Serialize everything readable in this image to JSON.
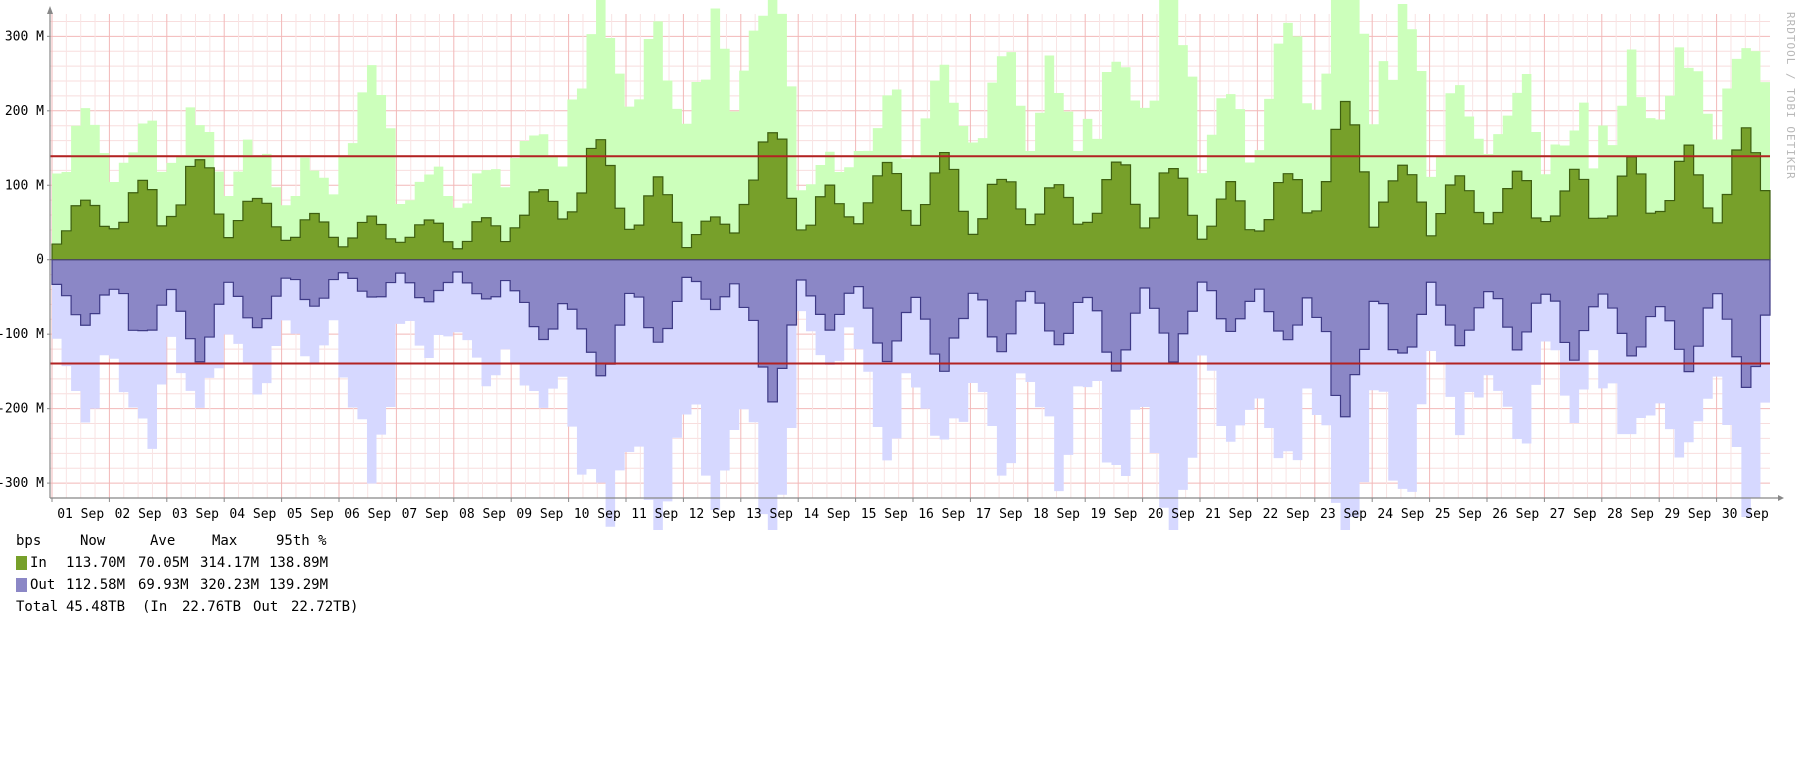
{
  "chart_data": {
    "type": "area",
    "ylabel": "",
    "xlabel": "",
    "ylim": [
      -320000000,
      330000000
    ],
    "yticks": [
      {
        "value": 300000000,
        "label": "300 M"
      },
      {
        "value": 200000000,
        "label": "200 M"
      },
      {
        "value": 100000000,
        "label": "100 M"
      },
      {
        "value": 0,
        "label": "0"
      },
      {
        "value": -100000000,
        "label": "-100 M"
      },
      {
        "value": -200000000,
        "label": "-200 M"
      },
      {
        "value": -300000000,
        "label": "-300 M"
      }
    ],
    "x_days": [
      "01 Sep",
      "02 Sep",
      "03 Sep",
      "04 Sep",
      "05 Sep",
      "06 Sep",
      "07 Sep",
      "08 Sep",
      "09 Sep",
      "10 Sep",
      "11 Sep",
      "12 Sep",
      "13 Sep",
      "14 Sep",
      "15 Sep",
      "16 Sep",
      "17 Sep",
      "18 Sep",
      "19 Sep",
      "20 Sep",
      "21 Sep",
      "22 Sep",
      "23 Sep",
      "24 Sep",
      "25 Sep",
      "26 Sep",
      "27 Sep",
      "28 Sep",
      "29 Sep",
      "30 Sep"
    ],
    "grid": true,
    "percentile_lines": [
      138890000,
      -139290000
    ],
    "series": [
      {
        "name": "In",
        "direction": "up",
        "avg_color": "#77a02a",
        "max_color": "#ccffbb",
        "daily_avg": [
          60,
          75,
          100,
          65,
          45,
          40,
          40,
          40,
          75,
          120,
          80,
          45,
          130,
          70,
          95,
          100,
          85,
          80,
          100,
          95,
          70,
          85,
          150,
          95,
          80,
          85,
          90,
          95,
          110,
          120
        ],
        "daily_max": [
          160,
          150,
          160,
          130,
          110,
          200,
          100,
          110,
          160,
          290,
          250,
          260,
          300,
          120,
          180,
          220,
          220,
          220,
          230,
          300,
          200,
          240,
          300,
          260,
          180,
          200,
          170,
          220,
          240,
          260
        ]
      },
      {
        "name": "Out",
        "direction": "down",
        "avg_color": "#8b87c6",
        "max_color": "#d6d8ff",
        "daily_avg": [
          60,
          75,
          100,
          65,
          45,
          40,
          40,
          40,
          75,
          120,
          80,
          45,
          130,
          70,
          95,
          100,
          85,
          80,
          100,
          95,
          70,
          85,
          150,
          95,
          80,
          85,
          90,
          95,
          110,
          120
        ],
        "daily_max": [
          160,
          200,
          180,
          130,
          120,
          240,
          110,
          130,
          170,
          300,
          310,
          260,
          310,
          120,
          200,
          220,
          220,
          220,
          230,
          320,
          200,
          240,
          310,
          260,
          180,
          200,
          170,
          220,
          240,
          260
        ]
      }
    ]
  },
  "watermark": "RRDTOOL / TOBI OETIKER",
  "legend": {
    "header": {
      "unit": "bps",
      "now": "Now",
      "ave": "Ave",
      "max": "Max",
      "p95": "95th %"
    },
    "rows": [
      {
        "name": "In",
        "color": "#77a02a",
        "now": "113.70M",
        "ave": "70.05M",
        "max": "314.17M",
        "p95": "138.89M"
      },
      {
        "name": "Out",
        "color": "#8b87c6",
        "now": "112.58M",
        "ave": "69.93M",
        "max": "320.23M",
        "p95": "139.29M"
      }
    ],
    "total": {
      "label": "Total",
      "value": "45.48TB",
      "in_label": "(In",
      "in_value": "22.76TB",
      "out_label": "Out",
      "out_value": "22.72TB)"
    }
  }
}
